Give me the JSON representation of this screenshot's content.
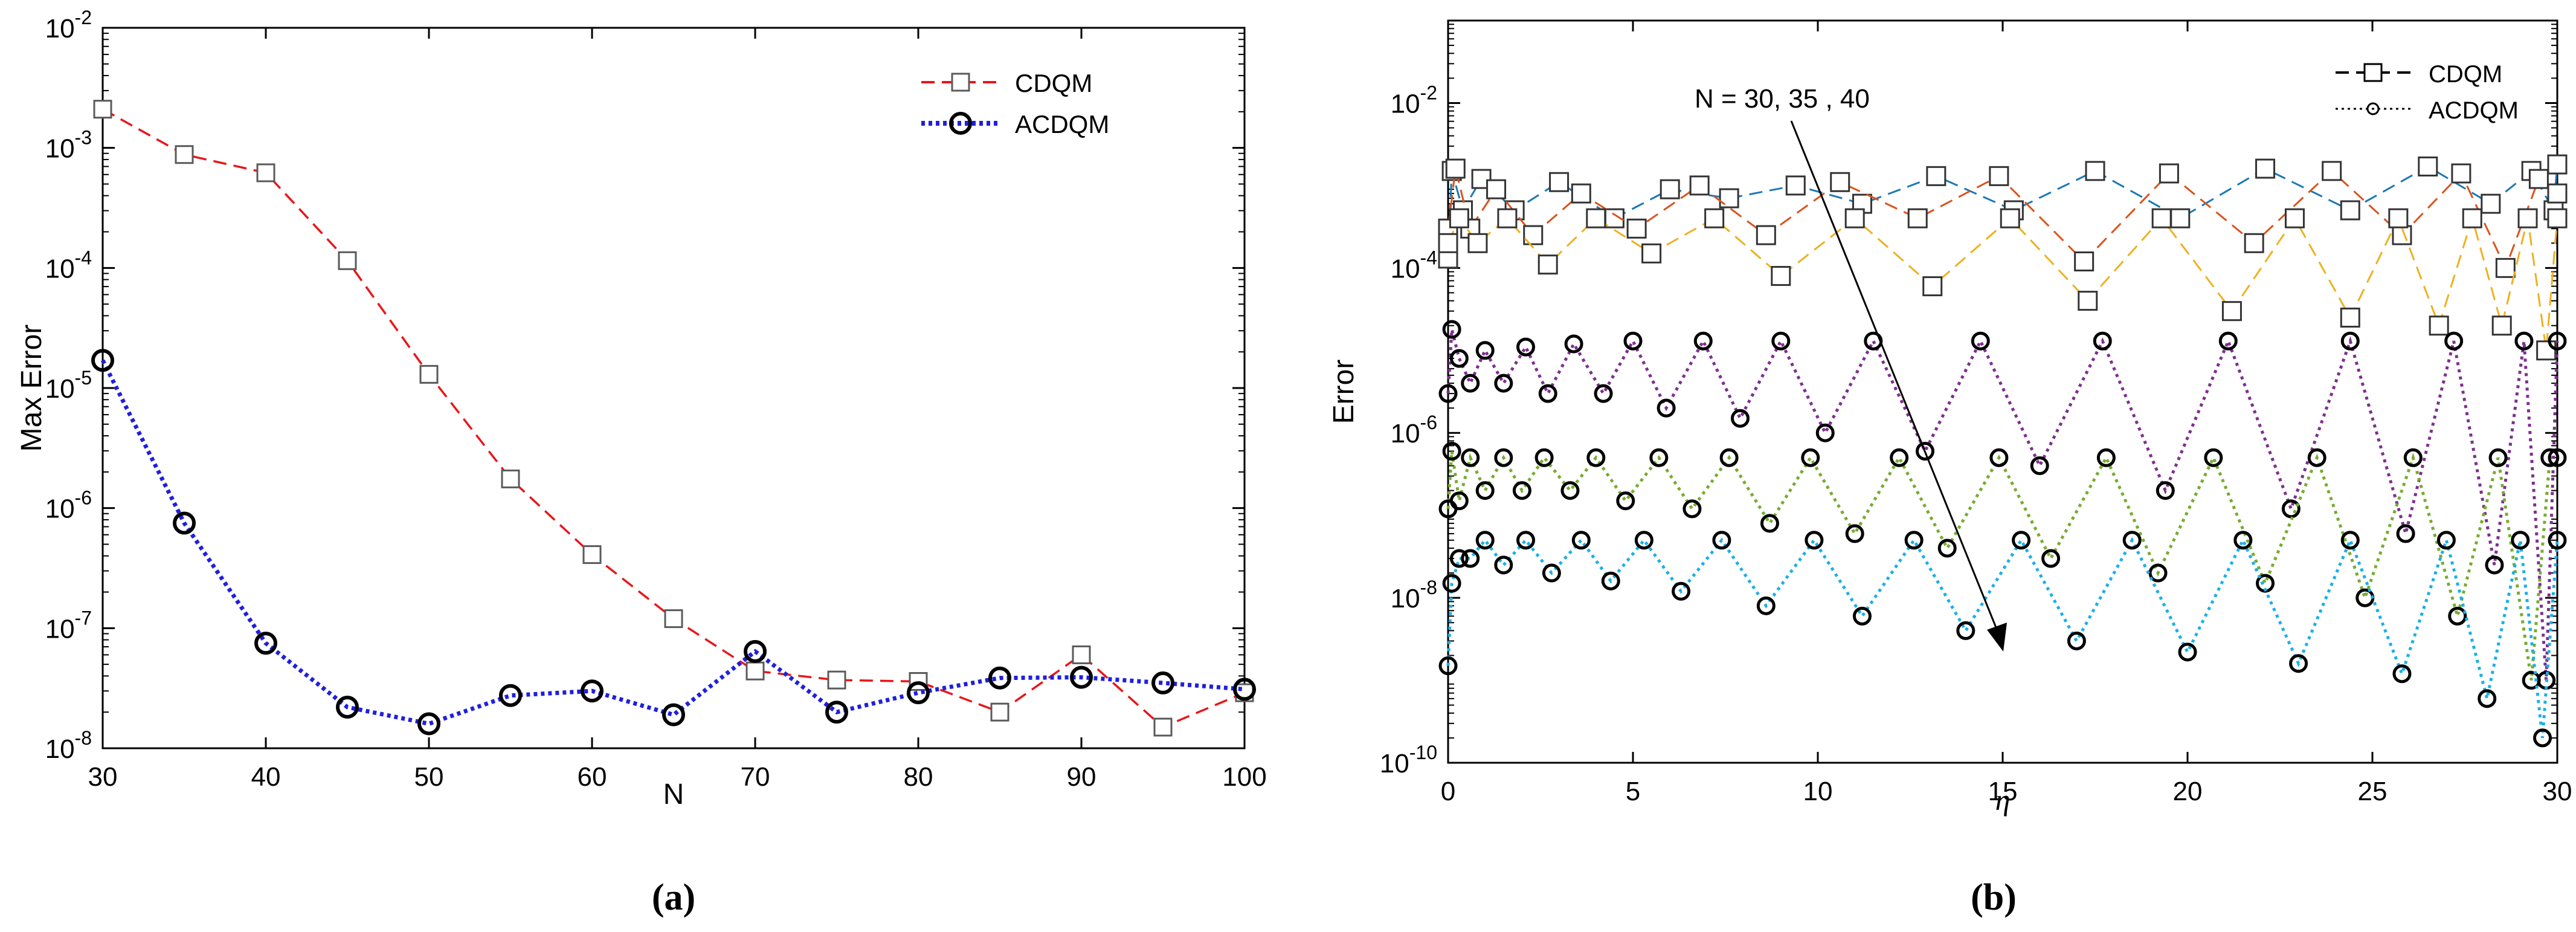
{
  "chart_data": [
    {
      "type": "line",
      "panel_label": "a",
      "xlabel": "N",
      "ylabel": "Max Error",
      "xlim": [
        30,
        100
      ],
      "ylim": [
        1e-08,
        0.01
      ],
      "yscale": "log",
      "xticks": [
        30,
        40,
        50,
        60,
        70,
        80,
        90,
        100
      ],
      "yticks": [
        1e-08,
        1e-07,
        1e-06,
        1e-05,
        0.0001,
        0.001,
        0.01
      ],
      "ytick_labels": [
        {
          "base": "10",
          "exp": "-8"
        },
        {
          "base": "10",
          "exp": "-7"
        },
        {
          "base": "10",
          "exp": "-6"
        },
        {
          "base": "10",
          "exp": "-5"
        },
        {
          "base": "10",
          "exp": "-4"
        },
        {
          "base": "10",
          "exp": "-3"
        },
        {
          "base": "10",
          "exp": "-2"
        }
      ],
      "legend_position": "top-right",
      "x": [
        30,
        35,
        40,
        45,
        50,
        55,
        60,
        65,
        70,
        75,
        80,
        85,
        90,
        95,
        100
      ],
      "series": [
        {
          "name": "CDQM",
          "color": "#e8161b",
          "marker": "square",
          "line": "dashed",
          "values": [
            0.0021,
            0.00088,
            0.00062,
            0.000115,
            1.3e-05,
            1.75e-06,
            4.1e-07,
            1.2e-07,
            4.4e-08,
            3.7e-08,
            3.6e-08,
            2e-08,
            6e-08,
            1.5e-08,
            2.9e-08
          ]
        },
        {
          "name": "ACDQM",
          "color": "#1f1fe0",
          "marker": "circle",
          "line": "dotted",
          "values": [
            1.7e-05,
            7.5e-07,
            7.5e-08,
            2.2e-08,
            1.6e-08,
            2.75e-08,
            3e-08,
            1.9e-08,
            6.4e-08,
            2e-08,
            2.9e-08,
            3.85e-08,
            3.9e-08,
            3.5e-08,
            3.1e-08
          ]
        }
      ]
    },
    {
      "type": "line",
      "panel_label": "b",
      "xlabel": "η",
      "ylabel": "Error",
      "xlim": [
        0,
        30
      ],
      "ylim": [
        1e-10,
        0.1
      ],
      "yscale": "log",
      "xticks": [
        0,
        5,
        10,
        15,
        20,
        25,
        30
      ],
      "yticks": [
        1e-10,
        1e-08,
        1e-06,
        0.0001,
        0.01
      ],
      "ytick_labels": [
        {
          "base": "10",
          "exp": "-10"
        },
        {
          "base": "10",
          "exp": "-8"
        },
        {
          "base": "10",
          "exp": "-6"
        },
        {
          "base": "10",
          "exp": "-4"
        },
        {
          "base": "10",
          "exp": "-2"
        }
      ],
      "legend_position": "top-right",
      "legend": [
        {
          "label": "CDQM",
          "marker": "square",
          "line": "dashed"
        },
        {
          "label": "ACDQM",
          "marker": "circle",
          "line": "dotted"
        }
      ],
      "annotation": {
        "text": "N = 30, 35 , 40",
        "arrow_from": [
          11.6,
          0.006
        ],
        "arrow_to": [
          15.0,
          1.4e-09
        ]
      },
      "series": [
        {
          "name": "CDQM N=30",
          "color": "#1b78b4",
          "marker": "square",
          "line": "dashed",
          "x": [
            0,
            0.1,
            0.4,
            0.9,
            1.8,
            3,
            4.5,
            6,
            7.6,
            9.4,
            11.2,
            13.2,
            15.3,
            17.5,
            19.8,
            22.1,
            24.4,
            26.5,
            28.2,
            29.3,
            29.9,
            30
          ],
          "y": [
            0.00013,
            0.0015,
            0.0005,
            0.0012,
            0.0005,
            0.0011,
            0.0004,
            0.0009,
            0.0007,
            0.001,
            0.0006,
            0.0013,
            0.0005,
            0.0015,
            0.0004,
            0.0016,
            0.0005,
            0.0017,
            0.0006,
            0.0015,
            0.0005,
            0.0018
          ]
        },
        {
          "name": "CDQM N=35",
          "color": "#d9531e",
          "marker": "square",
          "line": "dashed",
          "x": [
            0,
            0.2,
            0.6,
            1.3,
            2.3,
            3.6,
            5.1,
            6.8,
            8.6,
            10.6,
            12.7,
            14.9,
            17.2,
            19.5,
            21.8,
            23.9,
            25.8,
            27.4,
            28.6,
            29.5,
            30
          ],
          "y": [
            0.0003,
            0.0016,
            0.0003,
            0.0009,
            0.00025,
            0.0008,
            0.0003,
            0.001,
            0.00025,
            0.0011,
            0.0004,
            0.0013,
            0.00012,
            0.0014,
            0.0002,
            0.0015,
            0.00025,
            0.0014,
            0.0001,
            0.0012,
            0.0008
          ]
        },
        {
          "name": "CDQM N=40",
          "color": "#edb120",
          "marker": "square",
          "line": "dashed",
          "x": [
            0,
            0.3,
            0.8,
            1.6,
            2.7,
            4.0,
            5.5,
            7.2,
            9.0,
            11.0,
            13.1,
            15.2,
            17.3,
            19.3,
            21.2,
            22.9,
            24.4,
            25.7,
            26.8,
            27.7,
            28.5,
            29.2,
            29.7,
            30
          ],
          "y": [
            0.0002,
            0.0004,
            0.0002,
            0.0004,
            0.00011,
            0.0004,
            0.00015,
            0.0004,
            8e-05,
            0.0004,
            6e-05,
            0.0004,
            4e-05,
            0.0004,
            3e-05,
            0.0004,
            2.5e-05,
            0.0004,
            2e-05,
            0.0004,
            2e-05,
            0.0004,
            1e-05,
            0.0004
          ]
        },
        {
          "name": "ACDQM N=30",
          "color": "#7e2f8e",
          "marker": "circle",
          "line": "dotted",
          "x": [
            0,
            0.1,
            0.3,
            0.6,
            1.0,
            1.5,
            2.1,
            2.7,
            3.4,
            4.2,
            5.0,
            5.9,
            6.9,
            7.9,
            9.0,
            10.2,
            11.5,
            12.9,
            14.4,
            16.0,
            17.7,
            19.4,
            21.1,
            22.8,
            24.4,
            25.9,
            27.2,
            28.3,
            29.1,
            29.7,
            30
          ],
          "y": [
            3e-06,
            1.8e-05,
            8e-06,
            4e-06,
            1e-05,
            4e-06,
            1.1e-05,
            3e-06,
            1.2e-05,
            3e-06,
            1.3e-05,
            2e-06,
            1.3e-05,
            1.5e-06,
            1.3e-05,
            1e-06,
            1.3e-05,
            6e-07,
            1.3e-05,
            4e-07,
            1.3e-05,
            2e-07,
            1.3e-05,
            1.2e-07,
            1.3e-05,
            6e-08,
            1.3e-05,
            2.5e-08,
            1.3e-05,
            1e-09,
            1.3e-05
          ]
        },
        {
          "name": "ACDQM N=35",
          "color": "#77ac30",
          "marker": "circle",
          "line": "dotted",
          "x": [
            0,
            0.1,
            0.3,
            0.6,
            1.0,
            1.5,
            2.0,
            2.6,
            3.3,
            4.0,
            4.8,
            5.7,
            6.6,
            7.6,
            8.7,
            9.8,
            11.0,
            12.2,
            13.5,
            14.9,
            16.3,
            17.8,
            19.2,
            20.7,
            22.1,
            23.5,
            24.8,
            26.1,
            27.3,
            28.4,
            29.3,
            29.8,
            30
          ],
          "y": [
            1.2e-07,
            6e-07,
            1.5e-07,
            5e-07,
            2e-07,
            5e-07,
            2e-07,
            5e-07,
            2e-07,
            5e-07,
            1.5e-07,
            5e-07,
            1.2e-07,
            5e-07,
            8e-08,
            5e-07,
            6e-08,
            5e-07,
            4e-08,
            5e-07,
            3e-08,
            5e-07,
            2e-08,
            5e-07,
            1.5e-08,
            5e-07,
            1e-08,
            5e-07,
            6e-09,
            5e-07,
            1e-09,
            5e-07,
            5e-07
          ]
        },
        {
          "name": "ACDQM N=40",
          "color": "#1ab0e8",
          "marker": "circle",
          "line": "dotted",
          "x": [
            0,
            0.1,
            0.3,
            0.6,
            1.0,
            1.5,
            2.1,
            2.8,
            3.6,
            4.4,
            5.3,
            6.3,
            7.4,
            8.6,
            9.9,
            11.2,
            12.6,
            14.0,
            15.5,
            17.0,
            18.5,
            20.0,
            21.5,
            23.0,
            24.4,
            25.8,
            27.0,
            28.1,
            29.0,
            29.6,
            30
          ],
          "y": [
            1.5e-09,
            1.5e-08,
            3e-08,
            3e-08,
            5e-08,
            2.5e-08,
            5e-08,
            2e-08,
            5e-08,
            1.6e-08,
            5e-08,
            1.2e-08,
            5e-08,
            8e-09,
            5e-08,
            6e-09,
            5e-08,
            4e-09,
            5e-08,
            3e-09,
            5e-08,
            2.2e-09,
            5e-08,
            1.6e-09,
            5e-08,
            1.2e-09,
            5e-08,
            6e-10,
            5e-08,
            2e-10,
            5e-08
          ]
        }
      ]
    }
  ]
}
